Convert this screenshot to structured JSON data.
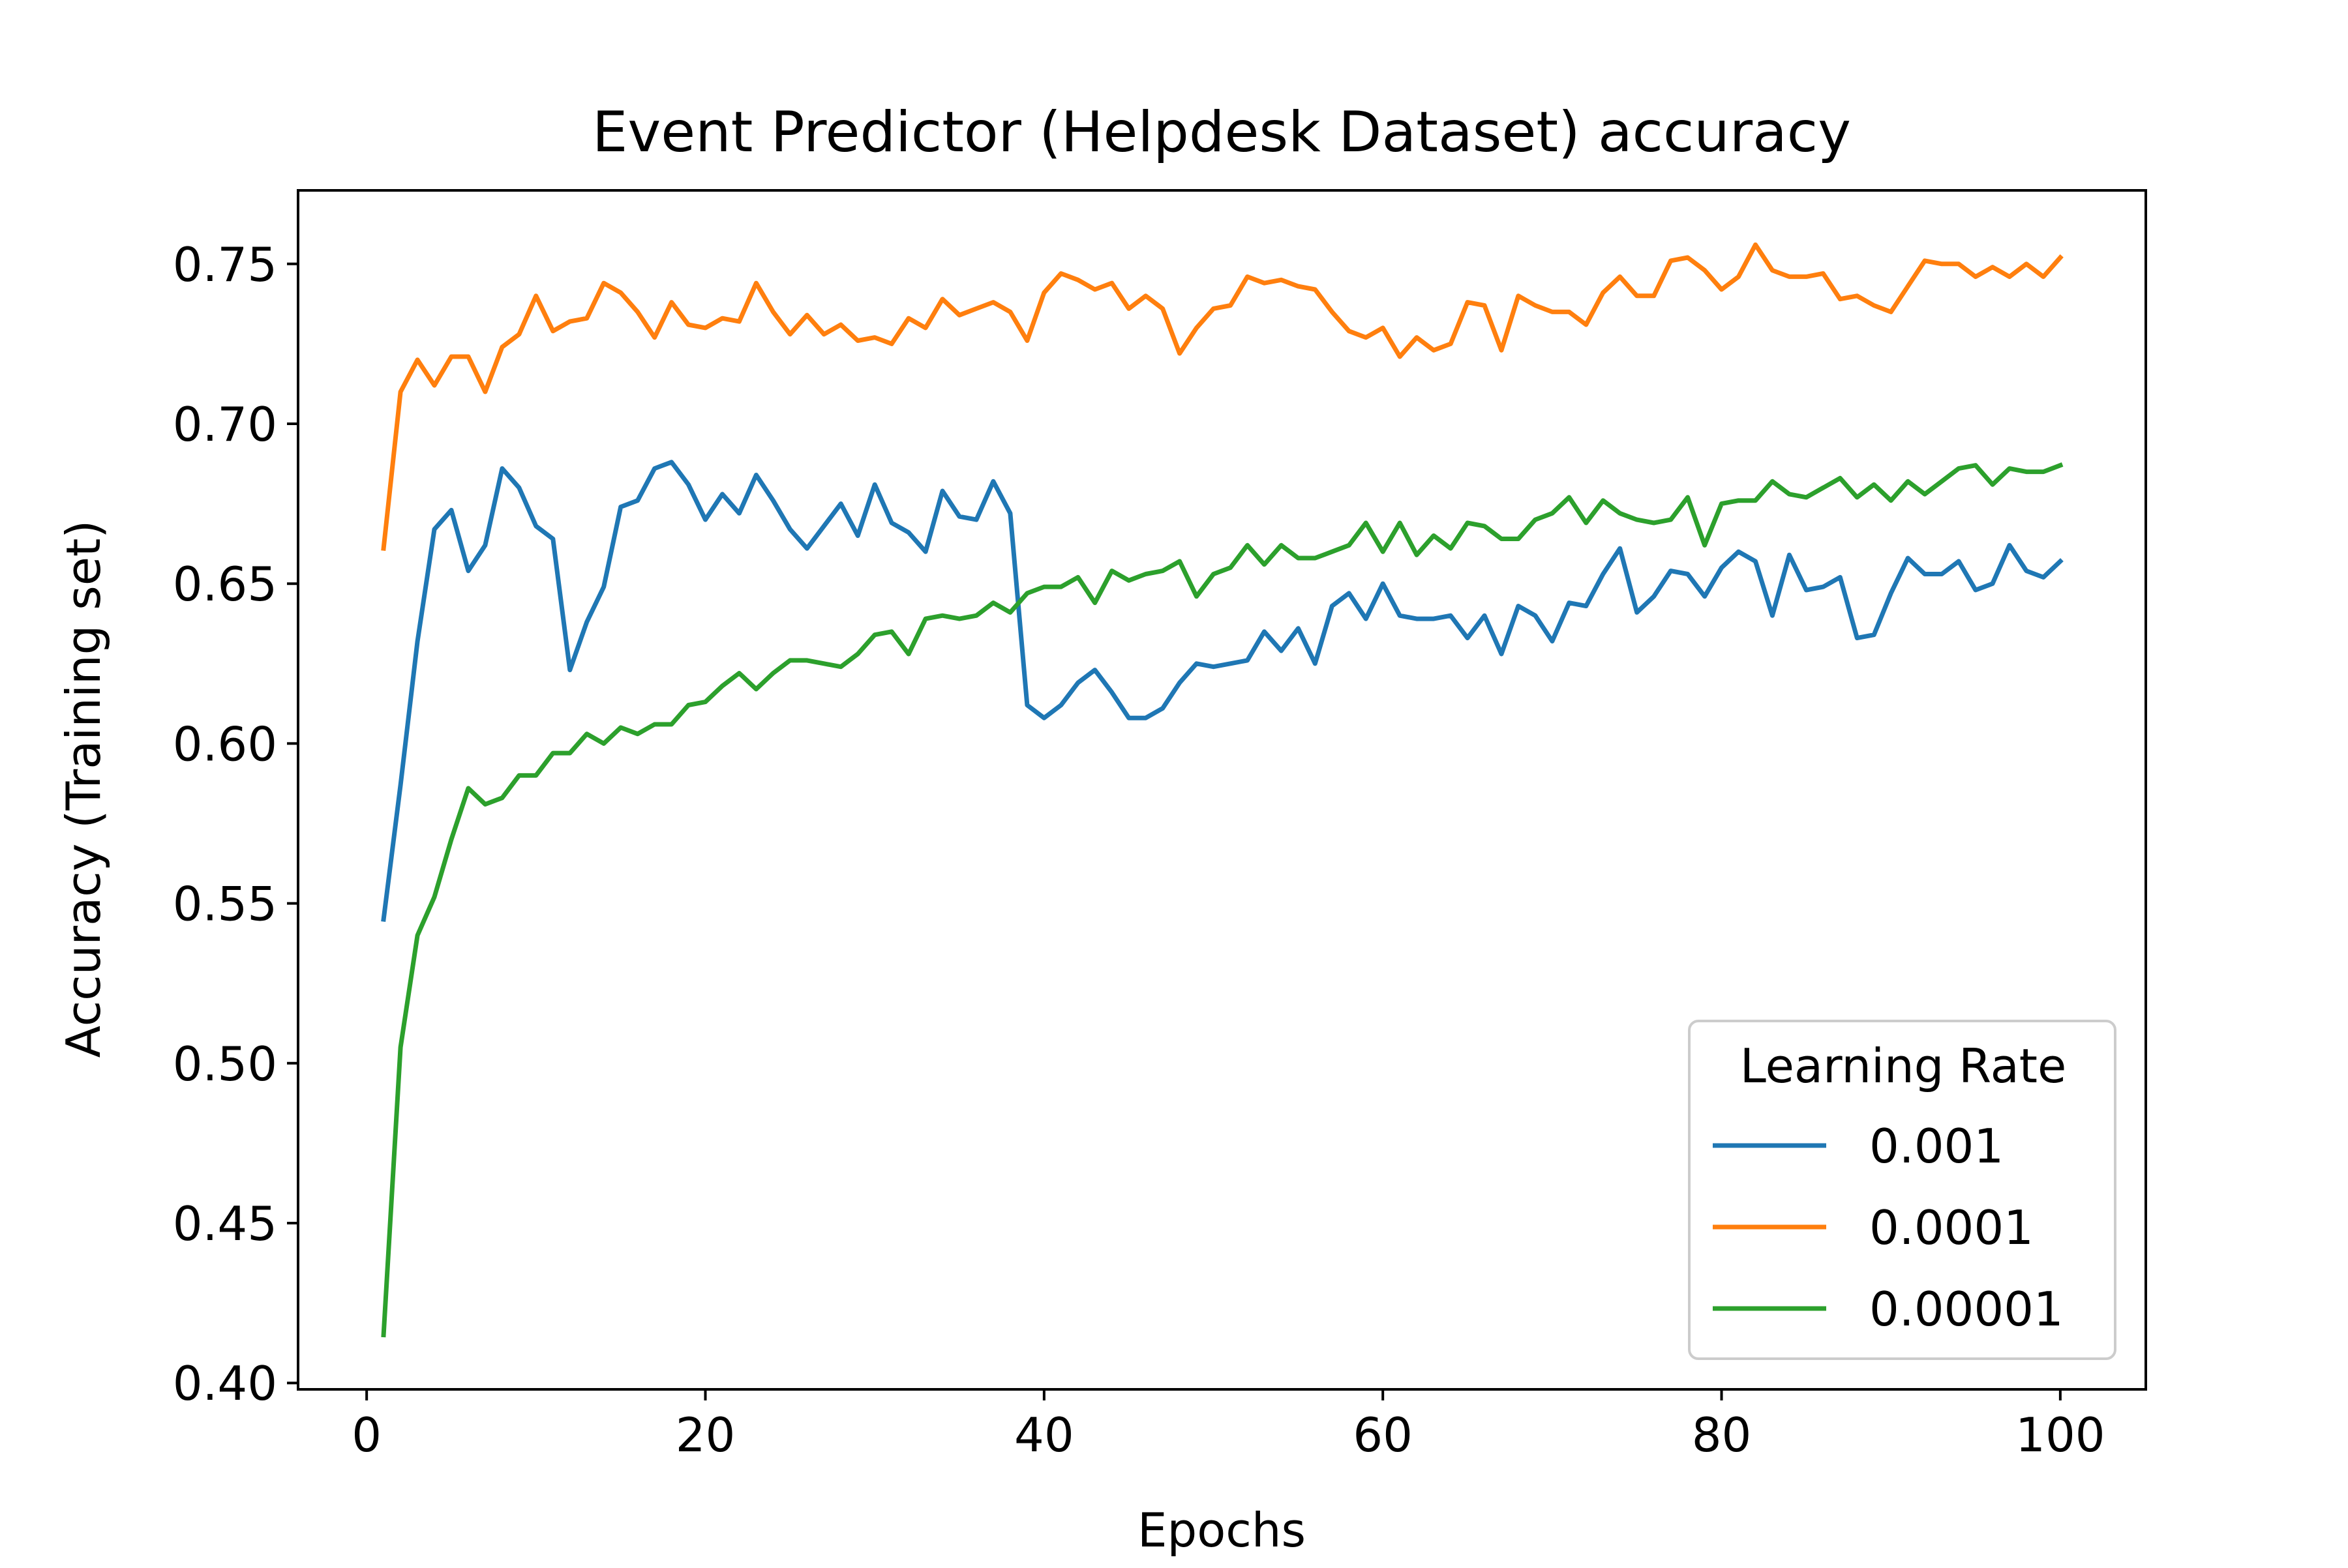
{
  "chart_data": {
    "type": "line",
    "title": "Event Predictor (Helpdesk Dataset) accuracy",
    "xlabel": "Epochs",
    "ylabel": "Accuracy (Training set)",
    "xlim": [
      -4.05,
      105.05
    ],
    "ylim": [
      0.398,
      0.773
    ],
    "xticks": [
      0,
      20,
      40,
      60,
      80,
      100
    ],
    "xtick_labels": [
      "0",
      "20",
      "40",
      "60",
      "80",
      "100"
    ],
    "yticks": [
      0.4,
      0.45,
      0.5,
      0.55,
      0.6,
      0.65,
      0.7,
      0.75
    ],
    "ytick_labels": [
      "0.40",
      "0.45",
      "0.50",
      "0.55",
      "0.60",
      "0.65",
      "0.70",
      "0.75"
    ],
    "grid": false,
    "legend": {
      "title": "Learning Rate",
      "position": "lower-right"
    },
    "x": [
      1,
      2,
      3,
      4,
      5,
      6,
      7,
      8,
      9,
      10,
      11,
      12,
      13,
      14,
      15,
      16,
      17,
      18,
      19,
      20,
      21,
      22,
      23,
      24,
      25,
      26,
      27,
      28,
      29,
      30,
      31,
      32,
      33,
      34,
      35,
      36,
      37,
      38,
      39,
      40,
      41,
      42,
      43,
      44,
      45,
      46,
      47,
      48,
      49,
      50,
      51,
      52,
      53,
      54,
      55,
      56,
      57,
      58,
      59,
      60,
      61,
      62,
      63,
      64,
      65,
      66,
      67,
      68,
      69,
      70,
      71,
      72,
      73,
      74,
      75,
      76,
      77,
      78,
      79,
      80,
      81,
      82,
      83,
      84,
      85,
      86,
      87,
      88,
      89,
      90,
      91,
      92,
      93,
      94,
      95,
      96,
      97,
      98,
      99,
      100
    ],
    "series": [
      {
        "name": "0.001",
        "color": "#1f77b4",
        "values": [
          0.545,
          0.587,
          0.632,
          0.667,
          0.673,
          0.654,
          0.662,
          0.686,
          0.68,
          0.668,
          0.664,
          0.623,
          0.638,
          0.649,
          0.674,
          0.676,
          0.686,
          0.688,
          0.681,
          0.67,
          0.678,
          0.672,
          0.684,
          0.676,
          0.667,
          0.661,
          0.668,
          0.675,
          0.665,
          0.681,
          0.669,
          0.666,
          0.66,
          0.679,
          0.671,
          0.67,
          0.682,
          0.672,
          0.612,
          0.608,
          0.612,
          0.619,
          0.623,
          0.616,
          0.608,
          0.608,
          0.611,
          0.619,
          0.625,
          0.624,
          0.625,
          0.626,
          0.635,
          0.629,
          0.636,
          0.625,
          0.643,
          0.647,
          0.639,
          0.65,
          0.64,
          0.639,
          0.639,
          0.64,
          0.633,
          0.64,
          0.628,
          0.643,
          0.64,
          0.632,
          0.644,
          0.643,
          0.653,
          0.661,
          0.641,
          0.646,
          0.654,
          0.653,
          0.646,
          0.655,
          0.66,
          0.657,
          0.64,
          0.659,
          0.648,
          0.649,
          0.652,
          0.633,
          0.634,
          0.647,
          0.658,
          0.653,
          0.653,
          0.657,
          0.648,
          0.65,
          0.662,
          0.654,
          0.652,
          0.657
        ]
      },
      {
        "name": "0.0001",
        "color": "#ff7f0e",
        "values": [
          0.661,
          0.71,
          0.72,
          0.712,
          0.721,
          0.721,
          0.71,
          0.724,
          0.728,
          0.74,
          0.729,
          0.732,
          0.733,
          0.744,
          0.741,
          0.735,
          0.727,
          0.738,
          0.731,
          0.73,
          0.733,
          0.732,
          0.744,
          0.735,
          0.728,
          0.734,
          0.728,
          0.731,
          0.726,
          0.727,
          0.725,
          0.733,
          0.73,
          0.739,
          0.734,
          0.736,
          0.738,
          0.735,
          0.726,
          0.741,
          0.747,
          0.745,
          0.742,
          0.744,
          0.736,
          0.74,
          0.736,
          0.722,
          0.73,
          0.736,
          0.737,
          0.746,
          0.744,
          0.745,
          0.743,
          0.742,
          0.735,
          0.729,
          0.727,
          0.73,
          0.721,
          0.727,
          0.723,
          0.725,
          0.738,
          0.737,
          0.723,
          0.74,
          0.737,
          0.735,
          0.735,
          0.731,
          0.741,
          0.746,
          0.74,
          0.74,
          0.751,
          0.752,
          0.748,
          0.742,
          0.746,
          0.756,
          0.748,
          0.746,
          0.746,
          0.747,
          0.739,
          0.74,
          0.737,
          0.735,
          0.743,
          0.751,
          0.75,
          0.75,
          0.746,
          0.749,
          0.746,
          0.75,
          0.746,
          0.752
        ]
      },
      {
        "name": "0.00001",
        "color": "#2ca02c",
        "values": [
          0.415,
          0.505,
          0.54,
          0.552,
          0.57,
          0.586,
          0.581,
          0.583,
          0.59,
          0.59,
          0.597,
          0.597,
          0.603,
          0.6,
          0.605,
          0.603,
          0.606,
          0.606,
          0.612,
          0.613,
          0.618,
          0.622,
          0.617,
          0.622,
          0.626,
          0.626,
          0.625,
          0.624,
          0.628,
          0.634,
          0.635,
          0.628,
          0.639,
          0.64,
          0.639,
          0.64,
          0.644,
          0.641,
          0.647,
          0.649,
          0.649,
          0.652,
          0.644,
          0.654,
          0.651,
          0.653,
          0.654,
          0.657,
          0.646,
          0.653,
          0.655,
          0.662,
          0.656,
          0.662,
          0.658,
          0.658,
          0.66,
          0.662,
          0.669,
          0.66,
          0.669,
          0.659,
          0.665,
          0.661,
          0.669,
          0.668,
          0.664,
          0.664,
          0.67,
          0.672,
          0.677,
          0.669,
          0.676,
          0.672,
          0.67,
          0.669,
          0.67,
          0.677,
          0.662,
          0.675,
          0.676,
          0.676,
          0.682,
          0.678,
          0.677,
          0.68,
          0.683,
          0.677,
          0.681,
          0.676,
          0.682,
          0.678,
          0.682,
          0.686,
          0.687,
          0.681,
          0.686,
          0.685,
          0.685,
          0.687
        ]
      }
    ]
  }
}
